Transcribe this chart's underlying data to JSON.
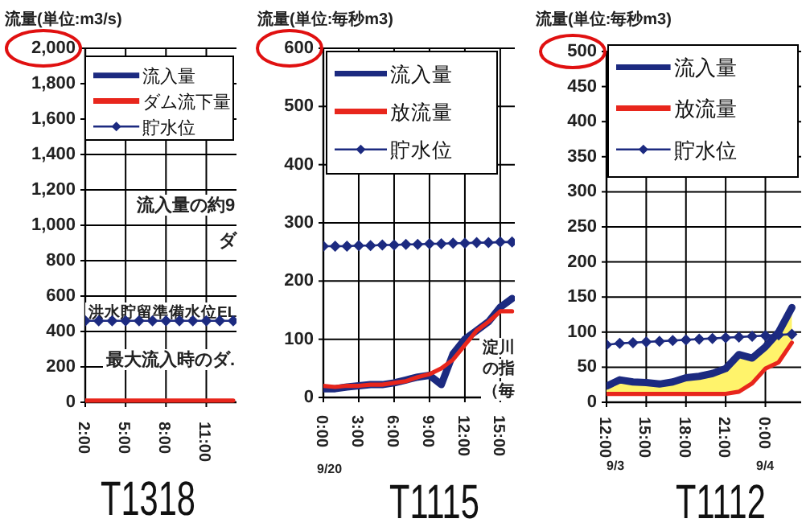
{
  "chart_data": [
    {
      "type": "line",
      "title": "T1318",
      "ylabel": "流量(単位:m3/s)",
      "categories": [
        "2:00",
        null,
        null,
        "5:00",
        null,
        null,
        "8:00",
        null,
        null,
        "11:00",
        null,
        null
      ],
      "series": [
        {
          "name": "流入量",
          "color": "#1c2a80",
          "values": [
            null,
            null,
            null,
            null,
            null,
            null,
            null,
            null,
            null,
            null,
            null,
            null
          ]
        },
        {
          "name": "ダム流下量",
          "color": "#e8261c",
          "values": [
            10,
            10,
            10,
            10,
            10,
            10,
            10,
            10,
            10,
            10,
            10,
            10
          ]
        },
        {
          "name": "貯水位",
          "color": "#1c2a80",
          "marker": "diamond",
          "values": [
            460,
            460,
            460,
            460,
            460,
            460,
            460,
            460,
            460,
            460,
            460,
            460
          ]
        }
      ],
      "ylim": [
        0,
        2000
      ],
      "yticks": [
        0,
        200,
        400,
        600,
        800,
        {
          "value": 1000,
          "label": "1,000"
        },
        {
          "value": 1200,
          "label": "1,200"
        },
        {
          "value": 1400,
          "label": "1,400"
        },
        {
          "value": 1600,
          "label": "1,600"
        },
        {
          "value": 1800,
          "label": "1,800"
        },
        {
          "value": 2000,
          "label": "2,000"
        }
      ],
      "grid": true,
      "legend": "top left",
      "annotations": [
        "流入量の約9",
        "ダ",
        "洪水貯留準備水位EL",
        "最大流入時のダ."
      ]
    },
    {
      "type": "line",
      "title": "T1115",
      "ylabel": "流量(単位:毎秒m3)",
      "categories": [
        "0:00",
        null,
        null,
        "3:00",
        null,
        null,
        "6:00",
        null,
        null,
        "9:00",
        null,
        null,
        "12:00",
        null,
        null,
        "15:00",
        null
      ],
      "series": [
        {
          "name": "流入量",
          "color": "#1c2a80",
          "values": [
            15,
            15,
            18,
            20,
            22,
            22,
            25,
            30,
            35,
            38,
            22,
            75,
            100,
            115,
            130,
            155,
            170
          ]
        },
        {
          "name": "放流量",
          "color": "#e8261c",
          "values": [
            20,
            18,
            20,
            20,
            22,
            22,
            25,
            28,
            35,
            40,
            50,
            65,
            90,
            115,
            130,
            148,
            148
          ]
        },
        {
          "name": "貯水位",
          "color": "#1c2a80",
          "marker": "diamond",
          "values": [
            260,
            260,
            260,
            261,
            261,
            262,
            262,
            263,
            263,
            264,
            264,
            265,
            265,
            266,
            266,
            267,
            267
          ]
        }
      ],
      "ylim": [
        0,
        600
      ],
      "yticks": [
        0,
        100,
        200,
        300,
        400,
        500,
        600
      ],
      "grid": true,
      "legend": "top left",
      "annotations": [
        "9/20",
        "淀川",
        "の指",
        "（毎"
      ]
    },
    {
      "type": "line",
      "title": "T1112",
      "ylabel": "流量(単位:毎秒m3)",
      "categories": [
        "12:00",
        null,
        null,
        "15:00",
        null,
        null,
        "18:00",
        null,
        null,
        "21:00",
        null,
        null,
        "0:00",
        null,
        null
      ],
      "series": [
        {
          "name": "流入量",
          "color": "#1c2a80",
          "values": [
            23,
            32,
            29,
            28,
            26,
            29,
            35,
            37,
            41,
            48,
            68,
            63,
            79,
            100,
            135
          ],
          "lower": [
            12,
            12,
            12,
            12,
            12,
            12,
            12,
            12,
            12,
            12,
            15,
            27,
            48,
            57,
            85
          ],
          "upper": [
            23,
            32,
            29,
            28,
            26,
            29,
            35,
            37,
            41,
            48,
            68,
            63,
            79,
            100,
            135
          ]
        },
        {
          "name": "放流量",
          "color": "#e8261c",
          "values": [
            12,
            12,
            12,
            12,
            12,
            12,
            12,
            12,
            12,
            12,
            15,
            27,
            48,
            57,
            85
          ]
        },
        {
          "name": "貯水位",
          "color": "#1c2a80",
          "marker": "diamond",
          "values": [
            82,
            84,
            85,
            86,
            87,
            88,
            89,
            90,
            91,
            92,
            93,
            94,
            95,
            96,
            97
          ]
        }
      ],
      "ylim": [
        0,
        500
      ],
      "yticks": [
        0,
        50,
        100,
        150,
        200,
        250,
        300,
        350,
        400,
        450,
        500
      ],
      "grid": true,
      "legend": "top left",
      "annotations": [
        "9/3",
        "9/4"
      ]
    }
  ]
}
